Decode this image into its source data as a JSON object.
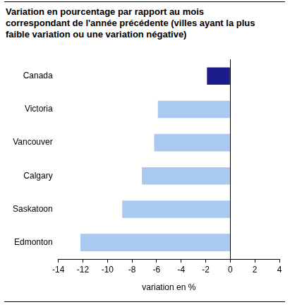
{
  "chart_data": {
    "type": "bar",
    "orientation": "horizontal",
    "title": "Variation en pourcentage par rapport au mois correspondant de l'année précédente (villes ayant la plus faible variation ou une variation négative)",
    "x_label": "variation en %",
    "categories": [
      "Canada",
      "Victoria",
      "Vancouver",
      "Calgary",
      "Saskatoon",
      "Edmonton"
    ],
    "values": [
      -1.9,
      -5.9,
      -6.2,
      -7.2,
      -8.8,
      -12.2
    ],
    "colors": [
      "#1c1c8c",
      "#a9c9f0",
      "#a9c9f0",
      "#a9c9f0",
      "#a9c9f0",
      "#a9c9f0"
    ],
    "xlim": [
      -14,
      4
    ],
    "xticks": [
      -14,
      -12,
      -10,
      -8,
      -6,
      -4,
      -2,
      0,
      2,
      4
    ],
    "grid": false
  }
}
